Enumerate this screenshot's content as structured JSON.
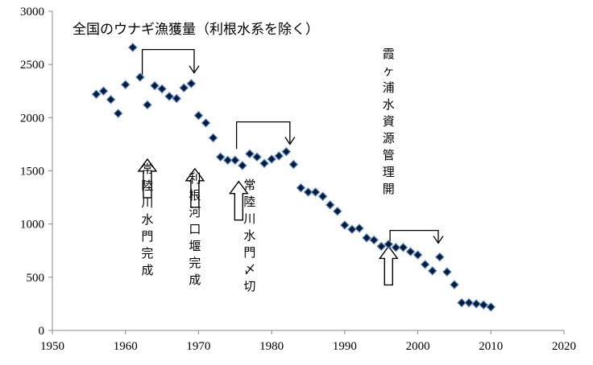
{
  "chart_data": {
    "type": "scatter",
    "title": "全国のウナギ漁獲量（利根水系を除く）",
    "xlim": [
      1950,
      2020
    ],
    "ylim": [
      0,
      3000
    ],
    "xticks": [
      "1950",
      "1960",
      "1970",
      "1980",
      "1990",
      "2000",
      "2010",
      "2020"
    ],
    "yticks": [
      "0",
      "500",
      "1000",
      "1500",
      "2000",
      "2500",
      "3000"
    ],
    "grid": false,
    "legend": "none",
    "marker_color": "#0b1a33",
    "marker_edge_color": "#5b8fd6",
    "points": [
      {
        "x": 1956,
        "y": 2220
      },
      {
        "x": 1957,
        "y": 2250
      },
      {
        "x": 1958,
        "y": 2170
      },
      {
        "x": 1959,
        "y": 2040
      },
      {
        "x": 1960,
        "y": 2310
      },
      {
        "x": 1961,
        "y": 2660
      },
      {
        "x": 1962,
        "y": 2380
      },
      {
        "x": 1963,
        "y": 2120
      },
      {
        "x": 1964,
        "y": 2300
      },
      {
        "x": 1965,
        "y": 2270
      },
      {
        "x": 1966,
        "y": 2200
      },
      {
        "x": 1967,
        "y": 2180
      },
      {
        "x": 1968,
        "y": 2280
      },
      {
        "x": 1969,
        "y": 2320
      },
      {
        "x": 1970,
        "y": 2020
      },
      {
        "x": 1971,
        "y": 1950
      },
      {
        "x": 1972,
        "y": 1810
      },
      {
        "x": 1973,
        "y": 1630
      },
      {
        "x": 1974,
        "y": 1600
      },
      {
        "x": 1975,
        "y": 1600
      },
      {
        "x": 1976,
        "y": 1550
      },
      {
        "x": 1977,
        "y": 1660
      },
      {
        "x": 1978,
        "y": 1630
      },
      {
        "x": 1979,
        "y": 1570
      },
      {
        "x": 1980,
        "y": 1610
      },
      {
        "x": 1981,
        "y": 1640
      },
      {
        "x": 1982,
        "y": 1680
      },
      {
        "x": 1983,
        "y": 1560
      },
      {
        "x": 1984,
        "y": 1340
      },
      {
        "x": 1985,
        "y": 1300
      },
      {
        "x": 1986,
        "y": 1300
      },
      {
        "x": 1987,
        "y": 1260
      },
      {
        "x": 1988,
        "y": 1180
      },
      {
        "x": 1989,
        "y": 1120
      },
      {
        "x": 1990,
        "y": 990
      },
      {
        "x": 1991,
        "y": 950
      },
      {
        "x": 1992,
        "y": 960
      },
      {
        "x": 1993,
        "y": 870
      },
      {
        "x": 1994,
        "y": 850
      },
      {
        "x": 1995,
        "y": 790
      },
      {
        "x": 1996,
        "y": 810
      },
      {
        "x": 1997,
        "y": 780
      },
      {
        "x": 1998,
        "y": 780
      },
      {
        "x": 1999,
        "y": 740
      },
      {
        "x": 2000,
        "y": 710
      },
      {
        "x": 2001,
        "y": 620
      },
      {
        "x": 2002,
        "y": 560
      },
      {
        "x": 2003,
        "y": 690
      },
      {
        "x": 2004,
        "y": 550
      },
      {
        "x": 2005,
        "y": 430
      },
      {
        "x": 2006,
        "y": 260
      },
      {
        "x": 2007,
        "y": 260
      },
      {
        "x": 2008,
        "y": 250
      },
      {
        "x": 2009,
        "y": 240
      },
      {
        "x": 2010,
        "y": 220
      }
    ],
    "annotations": [
      {
        "text": "常陸川水門完成",
        "at": {
          "x": 1963,
          "y": 1610
        },
        "text_pos": {
          "x": 1963,
          "y": 1480
        },
        "up_arrow": true
      },
      {
        "text": "利根河口堰完成",
        "at": {
          "x": 1969.5,
          "y": 1520
        },
        "text_pos": {
          "x": 1969.5,
          "y": 1390
        },
        "up_arrow": true
      },
      {
        "text": "常陸川水門〆切",
        "at": {
          "x": 1975.5,
          "y": 1400
        },
        "text_pos": {
          "x": 1977,
          "y": 1330
        },
        "up_arrow": true
      },
      {
        "text": "霞ヶ浦水資源管理開",
        "at": {
          "x": 1996,
          "y": 790
        },
        "text_pos": {
          "x": 1996,
          "y": 2560
        },
        "up_arrow": true
      }
    ],
    "brackets": [
      {
        "x1": 1962.3,
        "x2": 1969.4,
        "y_top": 2640,
        "y_end": 2420
      },
      {
        "x1": 1975.2,
        "x2": 1982.5,
        "y_top": 1960,
        "y_end": 1750
      },
      {
        "x1": 1996.2,
        "x2": 2002.8,
        "y_top": 940,
        "y_end": 820
      }
    ]
  }
}
